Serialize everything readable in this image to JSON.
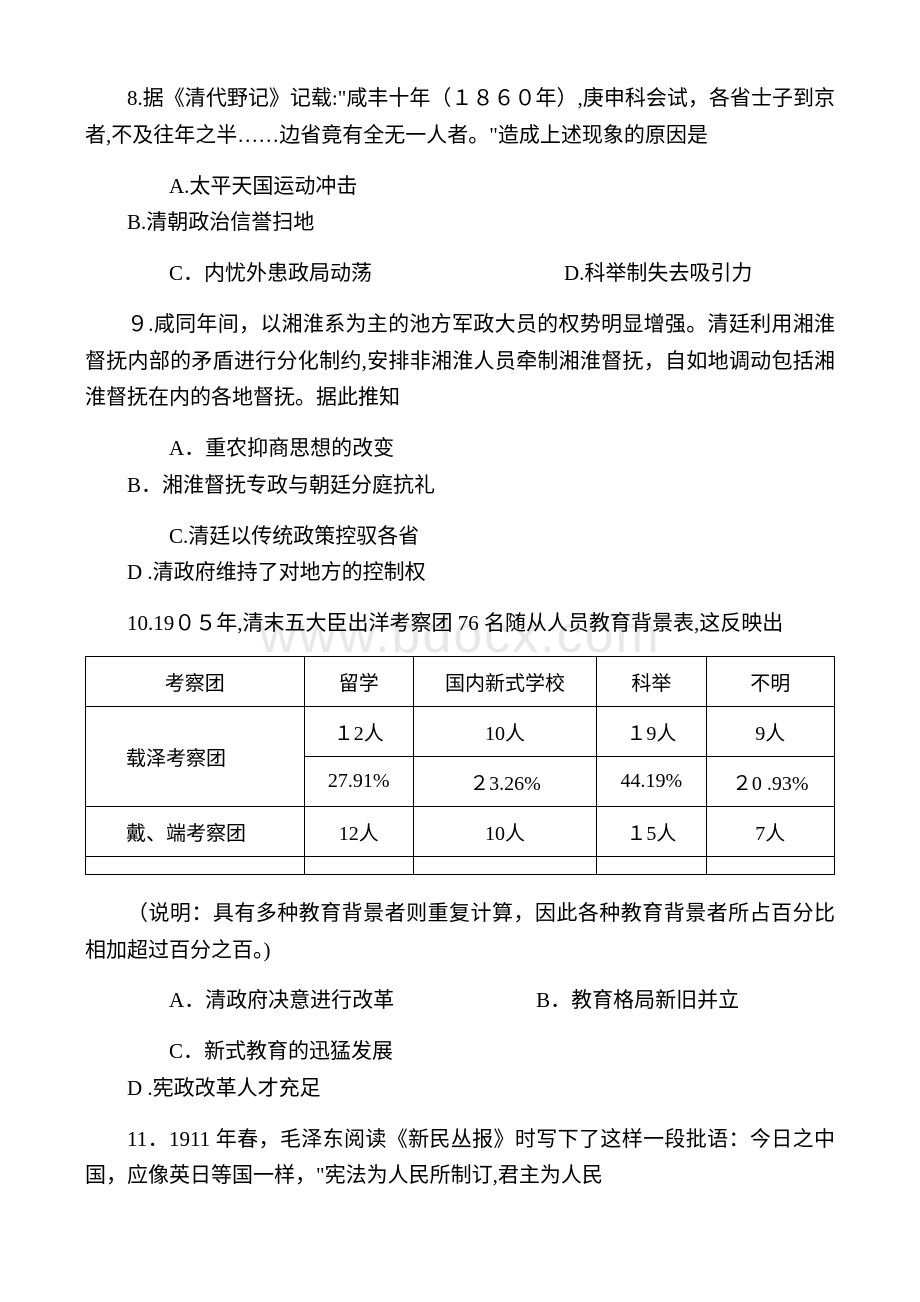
{
  "watermark": "www.bdocx.com",
  "q8": {
    "text": "8.据《清代野记》记载:\"咸丰十年（１８６０年）,庚申科会试，各省士子到京者,不及往年之半……边省竟有全无一人者。\"造成上述现象的原因是",
    "optA": "A.太平天国运动冲击",
    "optB": "B.清朝政治信誉扫地",
    "optC": "C．内忧外患政局动荡",
    "optD": "D.科举制失去吸引力"
  },
  "q9": {
    "text": "９.咸同年间，以湘淮系为主的池方军政大员的权势明显增强。清廷利用湘淮督抚内部的矛盾进行分化制约,安排非湘淮人员牵制湘淮督抚，自如地调动包括湘淮督抚在内的各地督抚。据此推知",
    "optA": "A．重农抑商思想的改变",
    "optB": "B．湘淮督抚专政与朝廷分庭抗礼",
    "optC": "C.清廷以传统政策控驭各省",
    "optD": "D .清政府维持了对地方的控制权"
  },
  "q10": {
    "text": "10.19０５年,清末五大臣出洋考察团 76 名随从人员教育背景表,这反映出",
    "table": {
      "headers": [
        "考察团",
        "留学",
        "国内新式学校",
        "科举",
        "不明"
      ],
      "group1_label": "　载泽考察团",
      "group1_row1": [
        "１2人",
        "10人",
        "１9人",
        "9人"
      ],
      "group1_row2": [
        "27.91%",
        "２3.26%",
        "44.19%",
        "２0 .93%"
      ],
      "group2_label": "　戴、端考察团",
      "group2_row1": [
        "12人",
        "10人",
        "１5人",
        "7人"
      ]
    },
    "note": "（说明：具有多种教育背景者则重复计算，因此各种教育背景者所占百分比相加超过百分之百。)",
    "optA": "A．清政府决意进行改革",
    "optB": "B．教育格局新旧并立",
    "optC": "C．新式教育的迅猛发展",
    "optD": "D .宪政改革人才充足"
  },
  "q11": {
    "text": "11．1911 年春，毛泽东阅读《新民丛报》时写下了这样一段批语：今日之中国，应像英日等国一样，\"宪法为人民所制订,君主为人民"
  },
  "styles": {
    "body_bg": "#ffffff",
    "text_color": "#000000",
    "watermark_color": "#e8e8e8",
    "border_color": "#000000",
    "body_fontsize": 21,
    "table_fontsize": 20,
    "watermark_fontsize": 52
  }
}
